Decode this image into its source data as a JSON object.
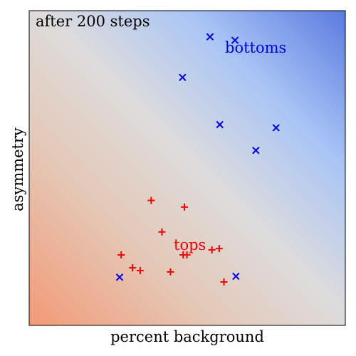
{
  "chart_data": {
    "type": "scatter",
    "annotation": "after 200 steps",
    "xlabel": "percent background",
    "ylabel": "asymmetry",
    "xlim": [
      0,
      1
    ],
    "ylim": [
      0,
      1
    ],
    "grid": false,
    "ticks": false,
    "series": [
      {
        "name": "bottoms",
        "marker": "x",
        "color": "#0000ee",
        "points": [
          {
            "x": 0.572,
            "y": 0.917
          },
          {
            "x": 0.651,
            "y": 0.906
          },
          {
            "x": 0.485,
            "y": 0.788
          },
          {
            "x": 0.603,
            "y": 0.638
          },
          {
            "x": 0.781,
            "y": 0.628
          },
          {
            "x": 0.717,
            "y": 0.556
          },
          {
            "x": 0.286,
            "y": 0.153
          },
          {
            "x": 0.654,
            "y": 0.156
          }
        ]
      },
      {
        "name": "tops",
        "marker": "+",
        "color": "#ee0000",
        "points": [
          {
            "x": 0.386,
            "y": 0.397
          },
          {
            "x": 0.491,
            "y": 0.376
          },
          {
            "x": 0.42,
            "y": 0.297
          },
          {
            "x": 0.487,
            "y": 0.224
          },
          {
            "x": 0.499,
            "y": 0.224
          },
          {
            "x": 0.578,
            "y": 0.24
          },
          {
            "x": 0.601,
            "y": 0.244
          },
          {
            "x": 0.291,
            "y": 0.224
          },
          {
            "x": 0.327,
            "y": 0.183
          },
          {
            "x": 0.351,
            "y": 0.174
          },
          {
            "x": 0.447,
            "y": 0.17
          },
          {
            "x": 0.616,
            "y": 0.138
          }
        ]
      }
    ],
    "background": {
      "top_right_color": "#5a7be0",
      "mid_color": "#dddcdc",
      "bottom_left_color": "#f39a75",
      "light_blue": "#a9c5f5"
    },
    "labels": [
      {
        "text": "bottoms",
        "color": "#0000ee",
        "series": "bottoms"
      },
      {
        "text": "tops",
        "color": "#ee0000",
        "series": "tops"
      }
    ]
  }
}
